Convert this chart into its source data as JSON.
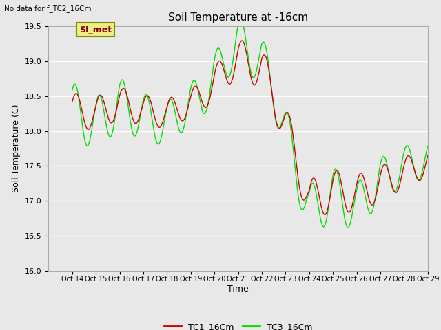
{
  "title": "Soil Temperature at -16cm",
  "subtitle": "No data for f_TC2_16Cm",
  "xlabel": "Time",
  "ylabel": "Soil Temperature (C)",
  "ylim": [
    16.0,
    19.5
  ],
  "xlim_days": [
    13,
    29
  ],
  "background_color": "#e8e8e8",
  "grid_color": "white",
  "legend_label1": "TC1_16Cm",
  "legend_label2": "TC3_16Cm",
  "legend_box_label": "SI_met",
  "color1": "#cc0000",
  "color2": "#00dd00",
  "yticks": [
    16.0,
    16.5,
    17.0,
    17.5,
    18.0,
    18.5,
    19.0,
    19.5
  ],
  "xtick_days": [
    14,
    15,
    16,
    17,
    18,
    19,
    20,
    21,
    22,
    23,
    24,
    25,
    26,
    27,
    28,
    29
  ]
}
